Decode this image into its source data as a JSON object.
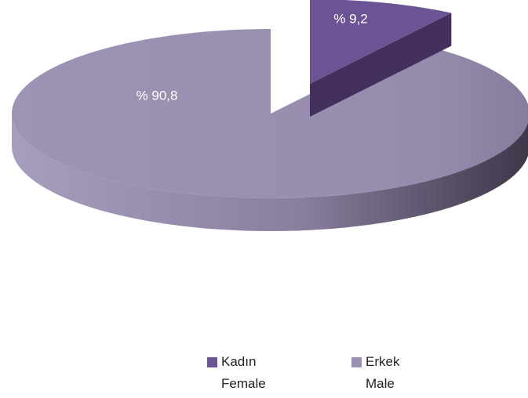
{
  "chart_data": {
    "type": "pie",
    "categories": [
      "Kadın\nFemale",
      "Erkek\nMale"
    ],
    "values": [
      9.2,
      90.8
    ],
    "value_labels": [
      "% 9,2",
      "% 90,8"
    ],
    "colors": [
      "#6b5394",
      "#9a90b2"
    ],
    "legend": "bottom"
  }
}
